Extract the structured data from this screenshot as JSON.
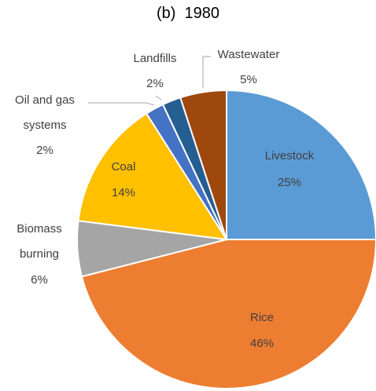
{
  "chart_data": {
    "type": "pie",
    "title": "(b)  1980",
    "categories": [
      "Livestock",
      "Rice",
      "Biomass burning",
      "Coal",
      "Oil and gas systems",
      "Landfills",
      "Wastewater"
    ],
    "values": [
      25,
      46,
      6,
      14,
      2,
      2,
      5
    ],
    "value_labels": [
      "25%",
      "46%",
      "6%",
      "14%",
      "2%",
      "2%",
      "5%"
    ],
    "colors": [
      "#5b9bd5",
      "#ed7d31",
      "#a5a5a5",
      "#ffc000",
      "#4472c4",
      "#255e91",
      "#9e480e"
    ]
  }
}
